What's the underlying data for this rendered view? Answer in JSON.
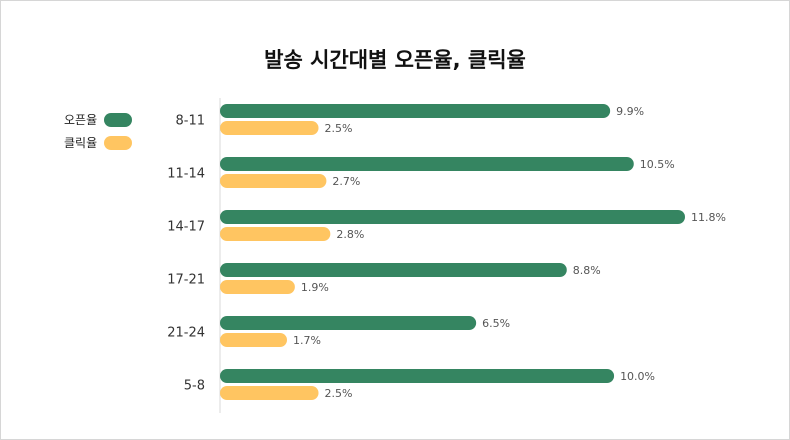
{
  "legend": {
    "items": [
      {
        "label": "오픈율",
        "color": "#358561"
      },
      {
        "label": "클릭율",
        "color": "#FFC561"
      }
    ]
  },
  "chart_data": {
    "type": "bar",
    "orientation": "horizontal",
    "title": "발송 시간대별 오픈율, 클릭율",
    "categories": [
      "8-11",
      "11-14",
      "14-17",
      "17-21",
      "21-24",
      "5-8"
    ],
    "series": [
      {
        "name": "오픈율",
        "color": "#358561",
        "values": [
          9.9,
          10.5,
          11.8,
          8.8,
          6.5,
          10.0
        ],
        "labels": [
          "9.9%",
          "10.5%",
          "11.8%",
          "8.8%",
          "6.5%",
          "10.0%"
        ]
      },
      {
        "name": "클릭율",
        "color": "#FFC561",
        "values": [
          2.5,
          2.7,
          2.8,
          1.9,
          1.7,
          2.5
        ],
        "labels": [
          "2.5%",
          "2.7%",
          "2.8%",
          "1.9%",
          "1.7%",
          "2.5%"
        ]
      }
    ],
    "xlim": [
      0,
      12
    ],
    "grid": false,
    "legend_position": "left"
  }
}
